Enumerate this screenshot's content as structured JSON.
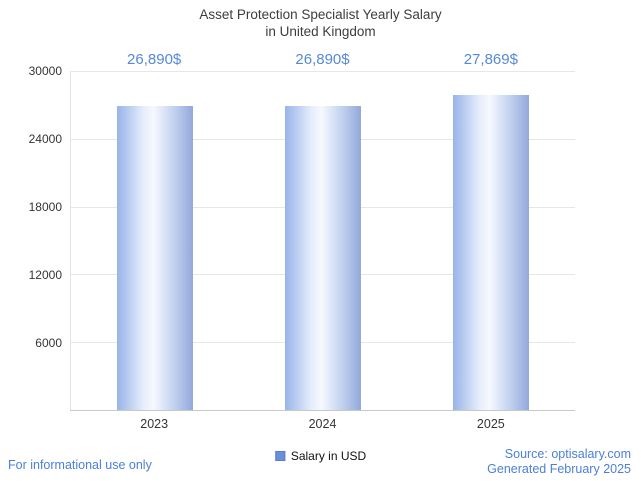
{
  "title": {
    "line1": "Asset Protection Specialist Yearly Salary",
    "line2": "in United Kingdom"
  },
  "chart_data": {
    "type": "bar",
    "title": "Asset Protection Specialist Yearly Salary in United Kingdom",
    "categories": [
      "2023",
      "2024",
      "2025"
    ],
    "values": [
      26890,
      26890,
      27869
    ],
    "value_labels": [
      "26,890$",
      "26,890$",
      "27,869$"
    ],
    "series": [
      {
        "name": "Salary in USD",
        "values": [
          26890,
          26890,
          27869
        ]
      }
    ],
    "xlabel": "",
    "ylabel": "",
    "ylim": [
      0,
      30000
    ],
    "yticks": [
      6000,
      12000,
      18000,
      24000,
      30000
    ],
    "grid": true,
    "legend_position": "bottom",
    "legend_label": "Salary in USD",
    "legend_color": "#6a8ed8",
    "bar_gradient": [
      "#98b4e8",
      "#f6f9fe",
      "#93a9dc"
    ],
    "value_label_color": "#5689d7"
  },
  "footer": {
    "left": "For informational use only",
    "source": "Source: optisalary.com",
    "generated": "Generated February 2025"
  },
  "colors": {
    "accent_blue": "#4b80da",
    "title_text": "#3d3d3d",
    "axis_text": "#353535",
    "gridline": "#e6e6e6",
    "baseline": "#c9c9c9",
    "background": "#ffffff"
  }
}
